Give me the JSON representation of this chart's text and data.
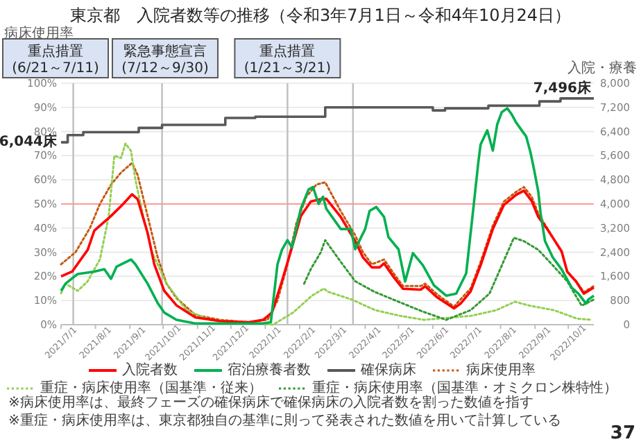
{
  "chart_data": {
    "type": "line",
    "title": "東京都　入院者数等の推移（令和3年7月1日～令和4年10月24日）",
    "ylabel": "病床使用率",
    "y2label": "入院・療養",
    "xlim": [
      "2021-07-01",
      "2022-10-24"
    ],
    "xticks": [
      {
        "value": "2021-07-01",
        "label": "2021/7/1"
      },
      {
        "value": "2021-08-01",
        "label": "2021/8/1"
      },
      {
        "value": "2021-09-01",
        "label": "2021/9/1"
      },
      {
        "value": "2021-10-01",
        "label": "2021/10/1"
      },
      {
        "value": "2021-11-01",
        "label": "2021/11/1"
      },
      {
        "value": "2021-12-01",
        "label": "2021/12/1"
      },
      {
        "value": "2022-01-01",
        "label": "2022/1/1"
      },
      {
        "value": "2022-02-01",
        "label": "2022/2/1"
      },
      {
        "value": "2022-03-01",
        "label": "2022/3/1"
      },
      {
        "value": "2022-04-01",
        "label": "2022/4/1"
      },
      {
        "value": "2022-05-01",
        "label": "2022/5/1"
      },
      {
        "value": "2022-06-01",
        "label": "2022/6/1"
      },
      {
        "value": "2022-07-01",
        "label": "2022/7/1"
      },
      {
        "value": "2022-08-01",
        "label": "2022/8/1"
      },
      {
        "value": "2022-09-01",
        "label": "2022/9/1"
      },
      {
        "value": "2022-10-01",
        "label": "2022/10/1"
      }
    ],
    "ylim": [
      0,
      100
    ],
    "yticks": [
      {
        "value": 0,
        "label": "0%"
      },
      {
        "value": 10,
        "label": "10%"
      },
      {
        "value": 20,
        "label": "20%"
      },
      {
        "value": 30,
        "label": "30%"
      },
      {
        "value": 40,
        "label": "40%"
      },
      {
        "value": 50,
        "label": "50%"
      },
      {
        "value": 60,
        "label": "60%"
      },
      {
        "value": 70,
        "label": "70%"
      },
      {
        "value": 80,
        "label": "80%"
      },
      {
        "value": 90,
        "label": "90%"
      },
      {
        "value": 100,
        "label": "100%"
      }
    ],
    "y2lim": [
      0,
      8000
    ],
    "y2ticks": [
      {
        "value": 0,
        "label": "0"
      },
      {
        "value": 800,
        "label": "800"
      },
      {
        "value": 1600,
        "label": "1,600"
      },
      {
        "value": 2400,
        "label": "2,400"
      },
      {
        "value": 3200,
        "label": "3,200"
      },
      {
        "value": 4000,
        "label": "4,000"
      },
      {
        "value": 4800,
        "label": "4,800"
      },
      {
        "value": 5600,
        "label": "5,600"
      },
      {
        "value": 6400,
        "label": "6,400"
      },
      {
        "value": 7200,
        "label": "7,200"
      },
      {
        "value": 8000,
        "label": "8,000"
      }
    ],
    "grid": "y",
    "legend": "bottom",
    "series": [
      {
        "name": "入院者数",
        "color": "#ff0000",
        "axis": "y2",
        "x": [
          "2021-07-01",
          "2021-07-11",
          "2021-07-25",
          "2021-07-31",
          "2021-08-15",
          "2021-08-26",
          "2021-09-03",
          "2021-09-08",
          "2021-09-17",
          "2021-09-23",
          "2021-10-02",
          "2021-10-13",
          "2021-10-30",
          "2021-11-21",
          "2021-12-17",
          "2021-12-30",
          "2022-01-07",
          "2022-01-16",
          "2022-01-25",
          "2022-02-02",
          "2022-02-11",
          "2022-02-20",
          "2022-02-25",
          "2022-03-10",
          "2022-03-23",
          "2022-03-30",
          "2022-04-07",
          "2022-04-14",
          "2022-04-18",
          "2022-04-27",
          "2022-05-05",
          "2022-05-21",
          "2022-05-25",
          "2022-06-05",
          "2022-06-20",
          "2022-06-26",
          "2022-07-05",
          "2022-07-14",
          "2022-07-25",
          "2022-08-04",
          "2022-08-15",
          "2022-08-22",
          "2022-08-29",
          "2022-09-04",
          "2022-09-12",
          "2022-09-25",
          "2022-09-30",
          "2022-10-08",
          "2022-10-15",
          "2022-10-24"
        ],
        "values": [
          1600,
          1760,
          2480,
          3120,
          3600,
          4000,
          4320,
          4160,
          3040,
          2000,
          1120,
          640,
          240,
          120,
          80,
          160,
          400,
          1440,
          2560,
          3600,
          4080,
          4160,
          4170,
          3570,
          2770,
          2230,
          1900,
          1900,
          2030,
          1560,
          1190,
          1160,
          1270,
          900,
          540,
          700,
          1100,
          1970,
          3170,
          3970,
          4300,
          4440,
          4100,
          3570,
          3170,
          2430,
          1760,
          1430,
          1030,
          1230
        ]
      },
      {
        "name": "宿泊療養者数",
        "color": "#00b050",
        "axis": "y2",
        "x": [
          "2021-07-01",
          "2021-07-05",
          "2021-07-16",
          "2021-07-31",
          "2021-08-09",
          "2021-08-15",
          "2021-08-20",
          "2021-09-02",
          "2021-09-06",
          "2021-09-17",
          "2021-09-26",
          "2021-10-02",
          "2021-10-13",
          "2021-10-30",
          "2021-12-30",
          "2022-01-06",
          "2022-01-12",
          "2022-01-16",
          "2022-01-21",
          "2022-01-25",
          "2022-02-02",
          "2022-02-09",
          "2022-02-13",
          "2022-02-18",
          "2022-02-22",
          "2022-02-25",
          "2022-03-10",
          "2022-03-19",
          "2022-03-23",
          "2022-04-01",
          "2022-04-05",
          "2022-04-11",
          "2022-04-18",
          "2022-04-22",
          "2022-05-01",
          "2022-05-07",
          "2022-05-14",
          "2022-05-23",
          "2022-06-02",
          "2022-06-13",
          "2022-06-22",
          "2022-07-01",
          "2022-07-07",
          "2022-07-12",
          "2022-07-14",
          "2022-07-20",
          "2022-07-25",
          "2022-07-29",
          "2022-08-02",
          "2022-08-07",
          "2022-08-11",
          "2022-08-15",
          "2022-08-20",
          "2022-08-24",
          "2022-08-28",
          "2022-08-31",
          "2022-09-04",
          "2022-09-06",
          "2022-09-10",
          "2022-09-17",
          "2022-09-25",
          "2022-10-04",
          "2022-10-10",
          "2022-10-17",
          "2022-10-19",
          "2022-10-24"
        ],
        "values": [
          1120,
          1360,
          1680,
          1760,
          1840,
          1520,
          1920,
          2160,
          2000,
          1360,
          720,
          400,
          160,
          40,
          40,
          80,
          2000,
          2480,
          2800,
          2560,
          3840,
          4480,
          4560,
          4000,
          4240,
          3840,
          3170,
          3170,
          2500,
          3170,
          3770,
          3900,
          3570,
          2900,
          2500,
          1430,
          2370,
          1970,
          1300,
          960,
          1030,
          1700,
          3700,
          5400,
          5970,
          6440,
          5770,
          6640,
          7040,
          7170,
          6970,
          6700,
          6440,
          6240,
          5700,
          5170,
          4400,
          3700,
          2770,
          2230,
          1830,
          1230,
          1030,
          700,
          830,
          960
        ]
      },
      {
        "name": "確保病床",
        "color": "#595959",
        "axis": "y2",
        "type": "step",
        "x": [
          "2021-07-01",
          "2021-07-07",
          "2021-07-21",
          "2021-09-09",
          "2021-09-30",
          "2021-11-26",
          "2021-12-23",
          "2022-02-24",
          "2022-06-01",
          "2022-06-12",
          "2022-07-21",
          "2022-09-05",
          "2022-09-24",
          "2022-10-24"
        ],
        "values": [
          6044,
          6280,
          6380,
          6520,
          6620,
          6850,
          6890,
          7200,
          7100,
          7170,
          7260,
          7400,
          7496,
          7496
        ]
      },
      {
        "name": "病床使用率",
        "color": "#c55a11",
        "line_style": "dotted",
        "x": [
          "2021-07-01",
          "2021-07-14",
          "2021-07-27",
          "2021-08-05",
          "2021-08-15",
          "2021-08-24",
          "2021-09-03",
          "2021-09-08",
          "2021-09-17",
          "2021-09-26",
          "2021-10-04",
          "2021-10-13",
          "2021-10-30",
          "2021-11-21",
          "2021-12-17",
          "2022-01-03",
          "2022-01-12",
          "2022-01-21",
          "2022-01-29",
          "2022-02-07",
          "2022-02-16",
          "2022-02-24",
          "2022-03-10",
          "2022-03-23",
          "2022-03-30",
          "2022-04-07",
          "2022-04-18",
          "2022-04-27",
          "2022-05-05",
          "2022-05-21",
          "2022-05-25",
          "2022-06-05",
          "2022-06-20",
          "2022-07-05",
          "2022-07-14",
          "2022-07-25",
          "2022-08-04",
          "2022-08-15",
          "2022-08-22",
          "2022-08-29",
          "2022-09-04",
          "2022-09-12",
          "2022-09-25",
          "2022-09-30",
          "2022-10-08",
          "2022-10-15",
          "2022-10-24"
        ],
        "values": [
          25,
          30,
          40,
          50,
          58,
          63,
          67,
          62,
          45,
          28,
          17,
          11,
          4,
          2,
          1,
          2,
          10,
          25,
          42,
          53,
          58,
          59,
          47,
          37,
          30,
          25,
          27,
          21,
          16,
          16,
          17,
          12.5,
          7.5,
          15,
          26,
          41,
          51,
          55,
          57,
          53,
          46,
          40,
          30,
          22,
          18,
          13.5,
          16
        ]
      },
      {
        "name": "重症・病床使用率（国基準・従来）",
        "color": "#92d050",
        "line_style": "dotted",
        "x": [
          "2021-07-01",
          "2021-07-05",
          "2021-07-16",
          "2021-07-25",
          "2021-08-05",
          "2021-08-13",
          "2021-08-18",
          "2021-08-24",
          "2021-08-28",
          "2021-09-02",
          "2021-09-06",
          "2021-09-13",
          "2021-09-21",
          "2021-10-04",
          "2021-10-22",
          "2021-11-12",
          "2021-12-17",
          "2022-01-08",
          "2022-01-26",
          "2022-02-12",
          "2022-02-23",
          "2022-02-26",
          "2022-03-20",
          "2022-04-10",
          "2022-05-02",
          "2022-05-24",
          "2022-06-14",
          "2022-07-06",
          "2022-07-28",
          "2022-08-14",
          "2022-08-27",
          "2022-09-18",
          "2022-10-09",
          "2022-10-22"
        ],
        "values": [
          13,
          17,
          14,
          18,
          27,
          45,
          70,
          69,
          75,
          72,
          60,
          45,
          30,
          17,
          6,
          2,
          1,
          0,
          5,
          12,
          15,
          13.7,
          10.4,
          6,
          3.7,
          2,
          2.8,
          3.7,
          6,
          9.5,
          7.9,
          6,
          2.5,
          2
        ]
      },
      {
        "name": "重症・病床使用率（国基準・オミクロン株特性）",
        "color": "#339933",
        "line_style": "dotted",
        "x": [
          "2022-02-05",
          "2022-02-11",
          "2022-02-20",
          "2022-02-24",
          "2022-03-10",
          "2022-03-23",
          "2022-04-09",
          "2022-05-01",
          "2022-05-23",
          "2022-06-13",
          "2022-07-05",
          "2022-07-22",
          "2022-08-13",
          "2022-08-22",
          "2022-09-04",
          "2022-09-17",
          "2022-09-30",
          "2022-10-13",
          "2022-10-24"
        ],
        "values": [
          17,
          23,
          30,
          35,
          26,
          18,
          13.7,
          9.5,
          5.4,
          2,
          6,
          12.9,
          36,
          34.6,
          31,
          24.6,
          18,
          7.9,
          10.4
        ]
      }
    ],
    "ref_lines": [
      {
        "axis": "x",
        "value": "2021-07-12",
        "color": "#bfbfbf"
      },
      {
        "axis": "x",
        "value": "2021-09-30",
        "color": "#bfbfbf"
      },
      {
        "axis": "x",
        "value": "2022-01-21",
        "color": "#bfbfbf"
      },
      {
        "axis": "x",
        "value": "2022-03-21",
        "color": "#bfbfbf"
      },
      {
        "axis": "y",
        "value": 50,
        "color": "#ff9999"
      }
    ],
    "annotations": [
      "重点措置\n(6/21～7/11)",
      "緊急事態宣言\n(7/12～9/30)",
      "重点措置\n(1/21～3/21)",
      "6,044床",
      "7,496床",
      "※病床使用率は、最終フェーズの確保病床で確保病床の入院者数を割った数値を指す",
      "※重症・病床使用率は、東京都独自の基準に則って発表された数値を用いて計算している",
      "37"
    ]
  }
}
